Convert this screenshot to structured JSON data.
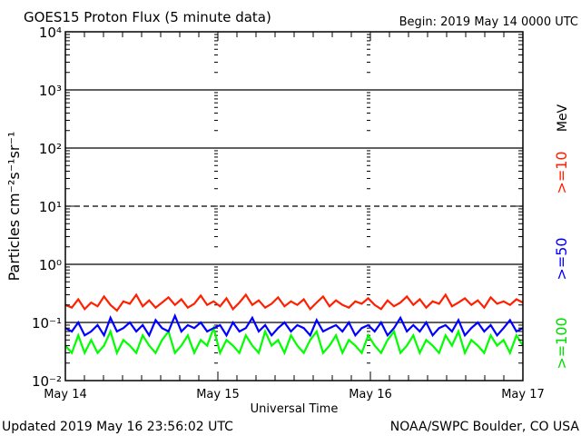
{
  "chart_data": {
    "type": "line",
    "title": "GOES15 Proton Flux (5 minute data)",
    "subtitle": "Begin: 2019 May 14 0000 UTC",
    "xlabel": "Universal Time",
    "ylabel": "Particles cm⁻²s⁻¹sr⁻¹",
    "x_tick_labels": [
      "May 14",
      "May 15",
      "May 16",
      "May 17"
    ],
    "y_tick_labels": [
      "10⁻²",
      "10⁻¹",
      "10⁰",
      "10¹",
      "10²",
      "10³",
      "10⁴"
    ],
    "y_scale": "log",
    "ylim": [
      0.01,
      10000
    ],
    "x_unit": "hours since 2019 May 14 0000 UTC (hourly samples)",
    "xlim_hours": [
      0,
      72
    ],
    "grid": "decade lines (10^1 dashed), day dividers dashed",
    "energy_unit": "MeV",
    "series": [
      {
        "name": ">=10",
        "color": "#ff2000",
        "values": [
          0.2,
          0.18,
          0.25,
          0.17,
          0.22,
          0.19,
          0.28,
          0.2,
          0.16,
          0.23,
          0.21,
          0.3,
          0.19,
          0.24,
          0.18,
          0.22,
          0.27,
          0.2,
          0.25,
          0.18,
          0.21,
          0.29,
          0.2,
          0.23,
          0.19,
          0.26,
          0.17,
          0.22,
          0.3,
          0.2,
          0.24,
          0.18,
          0.21,
          0.27,
          0.19,
          0.23,
          0.2,
          0.25,
          0.17,
          0.22,
          0.28,
          0.19,
          0.24,
          0.2,
          0.18,
          0.23,
          0.21,
          0.26,
          0.2,
          0.17,
          0.24,
          0.19,
          0.22,
          0.28,
          0.2,
          0.25,
          0.18,
          0.23,
          0.21,
          0.3,
          0.19,
          0.22,
          0.26,
          0.2,
          0.24,
          0.18,
          0.27,
          0.21,
          0.23,
          0.2,
          0.25,
          0.22
        ]
      },
      {
        "name": ">=50",
        "color": "#0000ff",
        "values": [
          0.08,
          0.07,
          0.1,
          0.06,
          0.07,
          0.09,
          0.06,
          0.12,
          0.07,
          0.08,
          0.1,
          0.07,
          0.09,
          0.06,
          0.11,
          0.08,
          0.07,
          0.13,
          0.07,
          0.09,
          0.08,
          0.1,
          0.07,
          0.08,
          0.09,
          0.06,
          0.1,
          0.07,
          0.08,
          0.12,
          0.07,
          0.09,
          0.06,
          0.08,
          0.1,
          0.07,
          0.09,
          0.08,
          0.06,
          0.11,
          0.07,
          0.08,
          0.09,
          0.07,
          0.1,
          0.06,
          0.08,
          0.09,
          0.07,
          0.1,
          0.06,
          0.08,
          0.12,
          0.07,
          0.09,
          0.07,
          0.1,
          0.06,
          0.08,
          0.09,
          0.07,
          0.11,
          0.06,
          0.08,
          0.1,
          0.07,
          0.09,
          0.06,
          0.08,
          0.11,
          0.07,
          0.08
        ]
      },
      {
        "name": ">=100",
        "color": "#00ff00",
        "values": [
          0.04,
          0.03,
          0.06,
          0.03,
          0.05,
          0.03,
          0.04,
          0.07,
          0.03,
          0.05,
          0.04,
          0.03,
          0.06,
          0.04,
          0.03,
          0.05,
          0.07,
          0.03,
          0.04,
          0.06,
          0.03,
          0.05,
          0.04,
          0.08,
          0.03,
          0.05,
          0.04,
          0.03,
          0.06,
          0.04,
          0.03,
          0.07,
          0.04,
          0.05,
          0.03,
          0.06,
          0.04,
          0.03,
          0.05,
          0.07,
          0.03,
          0.04,
          0.06,
          0.03,
          0.05,
          0.04,
          0.03,
          0.06,
          0.04,
          0.03,
          0.05,
          0.07,
          0.03,
          0.04,
          0.06,
          0.03,
          0.05,
          0.04,
          0.03,
          0.06,
          0.04,
          0.07,
          0.03,
          0.05,
          0.04,
          0.03,
          0.06,
          0.04,
          0.05,
          0.03,
          0.06,
          0.04
        ]
      }
    ]
  },
  "footer": {
    "updated": "Updated 2019 May 16 23:56:02 UTC",
    "credit": "NOAA/SWPC Boulder, CO USA"
  }
}
